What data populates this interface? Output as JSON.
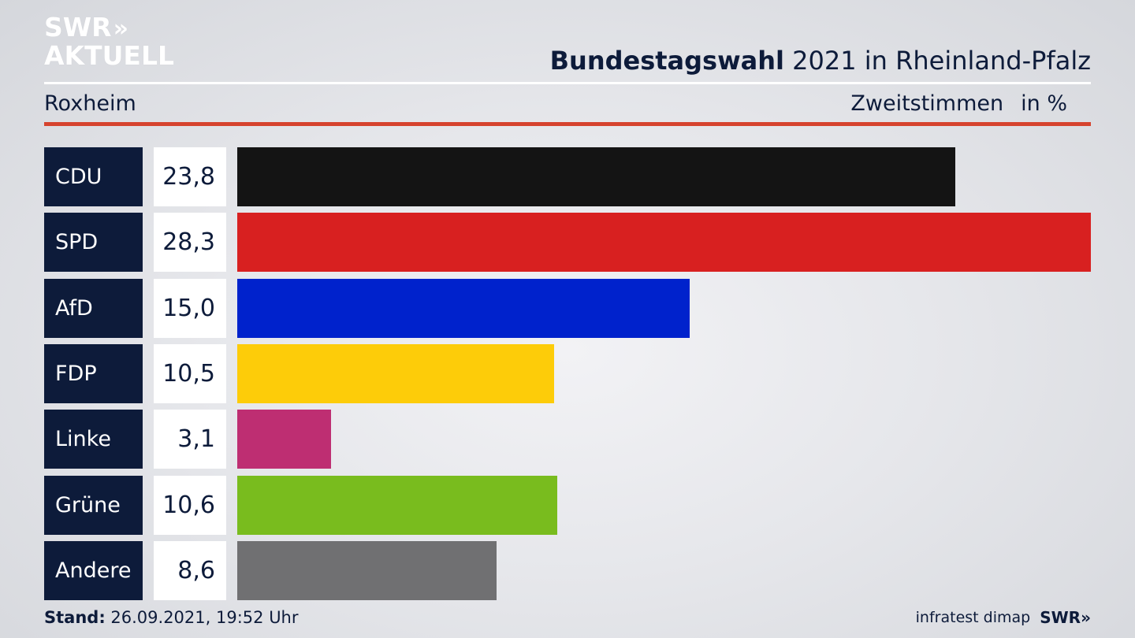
{
  "logo": {
    "line1": "SWR",
    "chevrons": "»",
    "line2": "AKTUELL"
  },
  "header": {
    "title_bold": "Bundestagswahl",
    "title_rest": "2021 in Rheinland-Pfalz",
    "region": "Roxheim",
    "metric": "Zweitstimmen",
    "unit": "in %"
  },
  "footer": {
    "stand_label": "Stand:",
    "stand_value": "26.09.2021, 19:52 Uhr",
    "source": "infratest dimap",
    "brand": "SWR»"
  },
  "colors": {
    "navy": "#0d1b3a",
    "accent_red": "#d6432e"
  },
  "chart_data": {
    "type": "bar",
    "orientation": "horizontal",
    "categories": [
      "CDU",
      "SPD",
      "AfD",
      "FDP",
      "Linke",
      "Grüne",
      "Andere"
    ],
    "values": [
      23.8,
      28.3,
      15.0,
      10.5,
      3.1,
      10.6,
      8.6
    ],
    "value_labels": [
      "23,8",
      "28,3",
      "15,0",
      "10,5",
      "3,1",
      "10,6",
      "8,6"
    ],
    "bar_colors": [
      "#141414",
      "#d82020",
      "#0022cc",
      "#fdcc09",
      "#be2e72",
      "#79bc1e",
      "#707072"
    ],
    "xlim": [
      0,
      28.3
    ],
    "grid": false,
    "legend": "none"
  }
}
